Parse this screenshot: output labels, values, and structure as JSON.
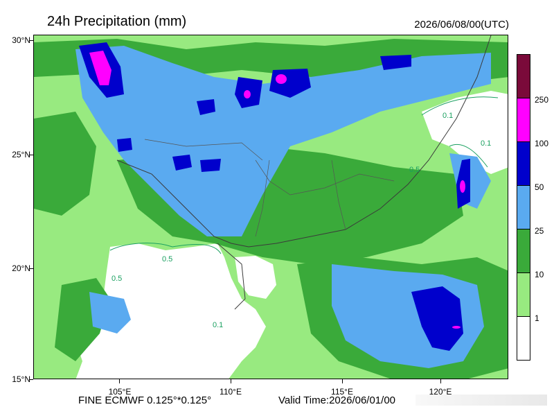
{
  "header": {
    "title": "24h Precipitation (mm)",
    "datetime": "2026/06/08/00(UTC)"
  },
  "axes": {
    "latitudes": [
      "30°N",
      "25°N",
      "20°N",
      "15°N"
    ],
    "longitudes": [
      "105°E",
      "110°E",
      "115°E",
      "120°E"
    ]
  },
  "legend": {
    "labels": [
      "250",
      "100",
      "50",
      "25",
      "10",
      "1"
    ],
    "colors": [
      "#7a0a3a",
      "#ff00ff",
      "#0000cc",
      "#5aaaf0",
      "#3aaa3a",
      "#98ea80",
      "#ffffff"
    ]
  },
  "contour_labels": [
    "0.1",
    "0.5"
  ],
  "footer": {
    "model": "FINE ECMWF 0.125°*0.125°",
    "valid_time": "Valid Time:2026/06/01/00"
  }
}
